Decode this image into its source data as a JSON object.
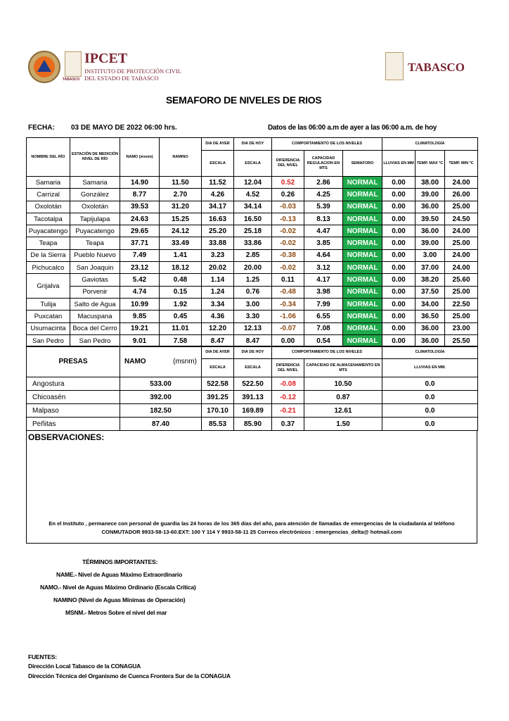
{
  "header": {
    "logo_left": {
      "title": "IPCET",
      "subtitle_1": "INSTITUTO DE PROTECCIÓN CIVIL",
      "subtitle_2": "DEL ESTADO DE TABASCO",
      "seal_caption": "TABASCO"
    },
    "logo_right": {
      "title": "TABASCO"
    }
  },
  "title": "SEMAFORO DE NIVELES DE RIOS",
  "fecha_label": "FECHA:",
  "fecha_value": "03 DE MAYO DE 2022 06:00 hrs.",
  "datos_note": "Datos de las 06:00 a.m de ayer a las 06:00 a.m. de hoy",
  "rivers_table": {
    "headers": {
      "rio": "NOMBRE DEL RÍO",
      "estacion": "ESTACIÓN DE MEDICIÓN NIVEL DE RÍO",
      "namo": "NAMO (msnm)",
      "namino": "NAMINO",
      "dia_ayer": "DIA DE AYER",
      "dia_hoy": "DIA DE HOY",
      "escala": "ESCALA",
      "comportamiento": "COMPORTAMIENTO DE LOS NIVELES",
      "diferencia": "DIFERENCIA DEL NIVEL",
      "capacidad": "CAPACIDAD REGULACION EN MTS",
      "semaforo": "SEMAFORO",
      "climatologia": "CLIMATOLOGÍA",
      "lluvias": "LLUVIAS EN MM",
      "tmax": "TEMP. MAX °C",
      "tmin": "TEMP. MIN °C"
    },
    "rows": [
      {
        "rio": "Samaria",
        "estacion": "Samaria",
        "namo": "14.90",
        "namino": "11.50",
        "ayer": "11.52",
        "hoy": "12.04",
        "dif": "0.52",
        "dif_color": "#e02020",
        "cap": "2.86",
        "semaforo": "NORMAL",
        "lluvias": "0.00",
        "tmax": "38.00",
        "tmin": "24.00"
      },
      {
        "rio": "Carrizal",
        "estacion": "González",
        "namo": "8.77",
        "namino": "2.70",
        "ayer": "4.26",
        "hoy": "4.52",
        "dif": "0.26",
        "dif_color": "#000000",
        "cap": "4.25",
        "semaforo": "NORMAL",
        "lluvias": "0.00",
        "tmax": "39.00",
        "tmin": "26.00"
      },
      {
        "rio": "Oxolotán",
        "estacion": "Oxolotán",
        "namo": "39.53",
        "namino": "31.20",
        "ayer": "34.17",
        "hoy": "34.14",
        "dif": "-0.03",
        "dif_color": "#8b4a12",
        "cap": "5.39",
        "semaforo": "NORMAL",
        "lluvias": "0.00",
        "tmax": "36.00",
        "tmin": "25.00"
      },
      {
        "rio": "Tacotalpa",
        "estacion": "Tapijulapa",
        "namo": "24.63",
        "namino": "15.25",
        "ayer": "16.63",
        "hoy": "16.50",
        "dif": "-0.13",
        "dif_color": "#8b4a12",
        "cap": "8.13",
        "semaforo": "NORMAL",
        "lluvias": "0.00",
        "tmax": "39.50",
        "tmin": "24.50"
      },
      {
        "rio": "Puyacatengo",
        "estacion": "Puyacatengo",
        "namo": "29.65",
        "namino": "24.12",
        "ayer": "25.20",
        "hoy": "25.18",
        "dif": "-0.02",
        "dif_color": "#8b4a12",
        "cap": "4.47",
        "semaforo": "NORMAL",
        "lluvias": "0.00",
        "tmax": "36.00",
        "tmin": "24.00"
      },
      {
        "rio": "Teapa",
        "estacion": "Teapa",
        "namo": "37.71",
        "namino": "33.49",
        "ayer": "33.88",
        "hoy": "33.86",
        "dif": "-0.02",
        "dif_color": "#8b4a12",
        "cap": "3.85",
        "semaforo": "NORMAL",
        "lluvias": "0.00",
        "tmax": "39.00",
        "tmin": "25.00"
      },
      {
        "rio": "De la Sierra",
        "estacion": "Pueblo Nuevo",
        "namo": "7.49",
        "namino": "1.41",
        "ayer": "3.23",
        "hoy": "2.85",
        "dif": "-0.38",
        "dif_color": "#8b4a12",
        "cap": "4.64",
        "semaforo": "NORMAL",
        "lluvias": "0.00",
        "tmax": "3.00",
        "tmin": "24.00"
      },
      {
        "rio": "Pichucalco",
        "estacion": "San Joaquin",
        "namo": "23.12",
        "namino": "18.12",
        "ayer": "20.02",
        "hoy": "20.00",
        "dif": "-0.02",
        "dif_color": "#8b4a12",
        "cap": "3.12",
        "semaforo": "NORMAL",
        "lluvias": "0.00",
        "tmax": "37.00",
        "tmin": "24.00"
      },
      {
        "rio": "Grijalva",
        "rowspan": 2,
        "estacion": "Gaviotas",
        "namo": "5.42",
        "namino": "0.48",
        "ayer": "1.14",
        "hoy": "1.25",
        "dif": "0.11",
        "dif_color": "#000000",
        "cap": "4.17",
        "semaforo": "NORMAL",
        "lluvias": "0.00",
        "tmax": "38.20",
        "tmin": "25.60"
      },
      {
        "estacion": "Porvenir",
        "namo": "4.74",
        "namino": "0.15",
        "ayer": "1.24",
        "hoy": "0.76",
        "dif": "-0.48",
        "dif_color": "#8b4a12",
        "cap": "3.98",
        "semaforo": "NORMAL",
        "lluvias": "0.00",
        "tmax": "37.50",
        "tmin": "25.00"
      },
      {
        "rio": "Tulija",
        "estacion": "Salto de Agua",
        "namo": "10.99",
        "namino": "1.92",
        "ayer": "3.34",
        "hoy": "3.00",
        "dif": "-0.34",
        "dif_color": "#8b4a12",
        "cap": "7.99",
        "semaforo": "NORMAL",
        "lluvias": "0.00",
        "tmax": "34.00",
        "tmin": "22.50"
      },
      {
        "rio": "Puxcatan",
        "estacion": "Macuspana",
        "namo": "9.85",
        "namino": "0.45",
        "ayer": "4.36",
        "hoy": "3.30",
        "dif": "-1.06",
        "dif_color": "#8b4a12",
        "cap": "6.55",
        "semaforo": "NORMAL",
        "lluvias": "0.00",
        "tmax": "36.50",
        "tmin": "25.00"
      },
      {
        "rio": "Usumacinta",
        "estacion": "Boca del Cerro",
        "namo": "19.21",
        "namino": "11.01",
        "ayer": "12.20",
        "hoy": "12.13",
        "dif": "-0.07",
        "dif_color": "#8b4a12",
        "cap": "7.08",
        "semaforo": "NORMAL",
        "lluvias": "0.00",
        "tmax": "36.00",
        "tmin": "23.00"
      },
      {
        "rio": "San Pedro",
        "estacion": "San Pedro",
        "namo": "9.01",
        "namino": "7.58",
        "ayer": "8.47",
        "hoy": "8.47",
        "dif": "0.00",
        "dif_color": "#000000",
        "cap": "0.54",
        "semaforo": "NORMAL",
        "lluvias": "0.00",
        "tmax": "36.00",
        "tmin": "25.50"
      }
    ],
    "semaforo_color": "#1faa4b"
  },
  "dams_table": {
    "headers": {
      "presas": "PRESAS",
      "namo": "NAMO",
      "msnm": "(msnm)",
      "dia_ayer": "DIA DE AYER",
      "dia_hoy": "DIA DE HOY",
      "escala": "ESCALA",
      "comportamiento": "COMPORTAMIENTO DE LOS NIVELES",
      "diferencia": "DIFERENCIA DEL NIVEL",
      "capacidad": "CAPACIDAD DE ALMACENAMIENTO EN MTS",
      "climatologia": "CLIMATOLOGÍA",
      "lluvias": "LLUVIAS EN MM."
    },
    "rows": [
      {
        "presa": "Angostura",
        "namo": "533.00",
        "ayer": "522.58",
        "hoy": "522.50",
        "dif": "-0.08",
        "dif_color": "#e02020",
        "cap": "10.50",
        "lluvias": "0.0"
      },
      {
        "presa": "Chicoasén",
        "namo": "392.00",
        "ayer": "391.25",
        "hoy": "391.13",
        "dif": "-0.12",
        "dif_color": "#e02020",
        "cap": "0.87",
        "lluvias": "0.0"
      },
      {
        "presa": "Malpaso",
        "namo": "182.50",
        "ayer": "170.10",
        "hoy": "169.89",
        "dif": "-0.21",
        "dif_color": "#e02020",
        "cap": "12.61",
        "lluvias": "0.0"
      },
      {
        "presa": "Peñitas",
        "namo": "87.40",
        "ayer": "85.53",
        "hoy": "85.90",
        "dif": "0.37",
        "dif_color": "#000000",
        "cap": "1.50",
        "lluvias": "0.0"
      }
    ]
  },
  "observaciones": {
    "title": "OBSERVACIONES:",
    "note_1": "En el Instituto , permanece con personal de guardia las 24 horas de los 365 días del año, para atención de llamadas de emergencias de la ciudadanía al teléfono",
    "note_2": "CONMUTADOR  9933-58-13-60.EXT: 100 Y 114  Y 9933-58-11 25   Correos electrónicos : emergencias_delta@ hotmail.com"
  },
  "terminos": {
    "title": "TÉRMINOS IMPORTANTES:",
    "items": [
      "NAME.- Nivel de Aguas Máximo Extraordinario",
      "NAMO.- Nivel de Aguas Máximo Ordinario (Escala Crítica)",
      "NAMINO (Nivel de Aguas Mínimas de Operación)",
      "MSNM.- Metros Sobre el nivel del mar"
    ]
  },
  "fuentes": {
    "title": "FUENTES:",
    "items": [
      "Dirección Local Tabasco de la CONAGUA",
      "Dirección Técnica del Organismo de Cuenca Frontera Sur de la CONAGUA"
    ]
  }
}
